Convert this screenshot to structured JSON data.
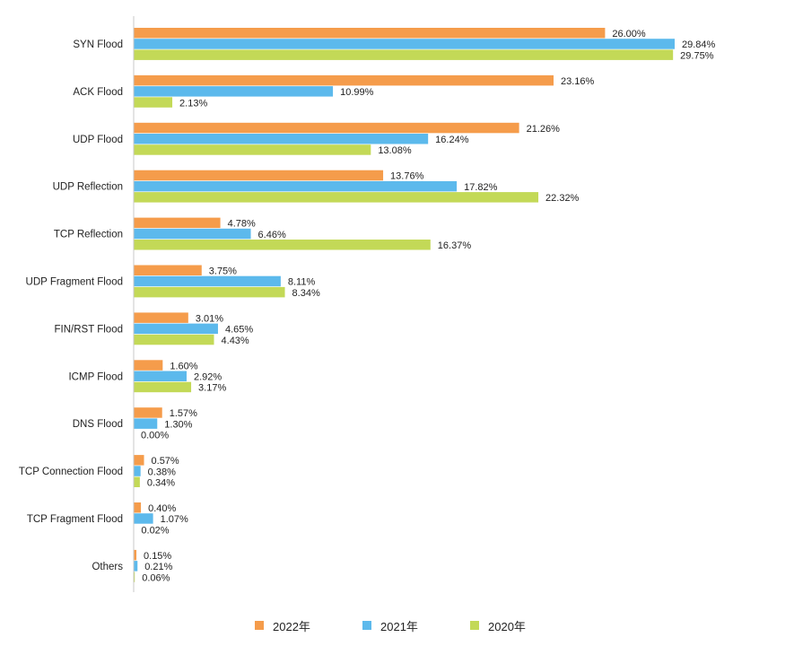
{
  "chart_data": {
    "type": "bar",
    "orientation": "horizontal",
    "title": "",
    "xlabel": "",
    "ylabel": "",
    "xlim": [
      0,
      30
    ],
    "grid": false,
    "legend_position": "bottom",
    "categories": [
      "SYN Flood",
      "ACK Flood",
      "UDP Flood",
      "UDP Reflection",
      "TCP Reflection",
      "UDP Fragment Flood",
      "FIN/RST Flood",
      "ICMP Flood",
      "DNS Flood",
      "TCP Connection Flood",
      "TCP Fragment Flood",
      "Others"
    ],
    "series": [
      {
        "name": "2022年",
        "color": "#f59c4b",
        "values": [
          26.0,
          23.16,
          21.26,
          13.76,
          4.78,
          3.75,
          3.01,
          1.6,
          1.57,
          0.57,
          0.4,
          0.15
        ],
        "labels": [
          "26.00%",
          "23.16%",
          "21.26%",
          "13.76%",
          "4.78%",
          "3.75%",
          "3.01%",
          "1.60%",
          "1.57%",
          "0.57%",
          "0.40%",
          "0.15%"
        ]
      },
      {
        "name": "2021年",
        "color": "#5cb9ec",
        "values": [
          29.84,
          10.99,
          16.24,
          17.82,
          6.46,
          8.11,
          4.65,
          2.92,
          1.3,
          0.38,
          1.07,
          0.21
        ],
        "labels": [
          "29.84%",
          "10.99%",
          "16.24%",
          "17.82%",
          "6.46%",
          "8.11%",
          "4.65%",
          "2.92%",
          "1.30%",
          "0.38%",
          "1.07%",
          "0.21%"
        ]
      },
      {
        "name": "2020年",
        "color": "#c3d957",
        "values": [
          29.75,
          2.13,
          13.08,
          22.32,
          16.37,
          8.34,
          4.43,
          3.17,
          0.0,
          0.34,
          0.02,
          0.06
        ],
        "labels": [
          "29.75%",
          "2.13%",
          "13.08%",
          "22.32%",
          "16.37%",
          "8.34%",
          "4.43%",
          "3.17%",
          "0.00%",
          "0.34%",
          "0.02%",
          "0.06%"
        ]
      }
    ]
  }
}
